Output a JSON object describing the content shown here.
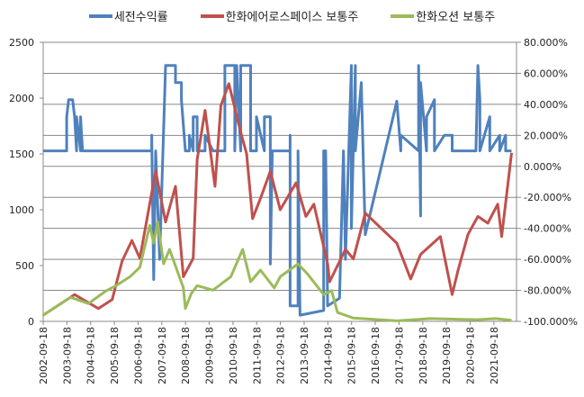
{
  "chart_data": {
    "type": "line",
    "title": "",
    "legend_position": "top",
    "grid": true,
    "x_ticks": [
      "2002-09-18",
      "2003-09-18",
      "2004-09-18",
      "2005-09-18",
      "2006-09-18",
      "2007-09-18",
      "2008-09-18",
      "2009-09-18",
      "2010-09-18",
      "2011-09-18",
      "2012-09-18",
      "2013-09-18",
      "2014-09-18",
      "2015-09-18",
      "2016-09-18",
      "2017-09-18",
      "2018-09-18",
      "2019-09-18",
      "2020-09-18",
      "2021-09-18"
    ],
    "xlim": [
      "2002-09-18",
      "2022-08-31"
    ],
    "y_left": {
      "range": [
        0,
        2500
      ],
      "ticks": [
        "0",
        "500",
        "1000",
        "1500",
        "2000",
        "2500"
      ]
    },
    "y_right": {
      "range": [
        -100,
        80
      ],
      "ticks": [
        "-100.000%",
        "-80.000%",
        "-60.000%",
        "-40.000%",
        "-20.000%",
        "0.000%",
        "20.000%",
        "40.000%",
        "60.000%",
        "80.000%"
      ]
    },
    "series": [
      {
        "name": "세전수익률",
        "axis": "right",
        "color": "#4F81BD",
        "points": [
          [
            "2002-09",
            10
          ],
          [
            "2003-09",
            10
          ],
          [
            "2003-09",
            32
          ],
          [
            "2003-10",
            43
          ],
          [
            "2003-12",
            43
          ],
          [
            "2004-01",
            32
          ],
          [
            "2004-02",
            10
          ],
          [
            "2004-02",
            32
          ],
          [
            "2004-04",
            10
          ],
          [
            "2004-04",
            32
          ],
          [
            "2004-05",
            10
          ],
          [
            "2007-04",
            10
          ],
          [
            "2007-04",
            20
          ],
          [
            "2007-05",
            -73
          ],
          [
            "2007-06",
            10
          ],
          [
            "2007-08",
            -60
          ],
          [
            "2007-11",
            65
          ],
          [
            "2008-04",
            65
          ],
          [
            "2008-04",
            54
          ],
          [
            "2008-07",
            54
          ],
          [
            "2008-07",
            43
          ],
          [
            "2008-09",
            10
          ],
          [
            "2008-11",
            10
          ],
          [
            "2008-11",
            20
          ],
          [
            "2009-01",
            10
          ],
          [
            "2009-01",
            32
          ],
          [
            "2009-03",
            32
          ],
          [
            "2009-03",
            10
          ],
          [
            "2009-07",
            10
          ],
          [
            "2009-07",
            20
          ],
          [
            "2009-11",
            10
          ],
          [
            "2010-05",
            10
          ],
          [
            "2010-05",
            65
          ],
          [
            "2010-10",
            65
          ],
          [
            "2010-10",
            10
          ],
          [
            "2010-11",
            65
          ],
          [
            "2011-01",
            10
          ],
          [
            "2011-01",
            65
          ],
          [
            "2011-06",
            65
          ],
          [
            "2011-06",
            10
          ],
          [
            "2011-09",
            10
          ],
          [
            "2011-09",
            32
          ],
          [
            "2012-01",
            10
          ],
          [
            "2012-01",
            32
          ],
          [
            "2012-04",
            32
          ],
          [
            "2012-04",
            -63
          ],
          [
            "2012-05",
            10
          ],
          [
            "2012-10",
            10
          ],
          [
            "2013-02",
            10
          ],
          [
            "2013-02",
            20
          ],
          [
            "2013-02",
            -90
          ],
          [
            "2013-06",
            -90
          ],
          [
            "2013-06",
            10
          ],
          [
            "2013-07",
            -96
          ],
          [
            "2014-07",
            -93
          ],
          [
            "2014-07",
            10
          ],
          [
            "2014-08",
            10
          ],
          [
            "2014-09",
            -90
          ],
          [
            "2015-03",
            -85
          ],
          [
            "2015-05",
            10
          ],
          [
            "2015-06",
            -60
          ],
          [
            "2015-09",
            65
          ],
          [
            "2015-09",
            -40
          ],
          [
            "2015-11",
            65
          ],
          [
            "2015-11",
            10
          ],
          [
            "2016-02",
            54
          ],
          [
            "2016-04",
            -44
          ],
          [
            "2017-08",
            42
          ],
          [
            "2017-10",
            10
          ],
          [
            "2017-10",
            20
          ],
          [
            "2018-07",
            10
          ],
          [
            "2018-07",
            65
          ],
          [
            "2018-08",
            -32
          ],
          [
            "2018-08",
            54
          ],
          [
            "2018-11",
            10
          ],
          [
            "2018-11",
            32
          ],
          [
            "2019-03",
            43
          ],
          [
            "2019-03",
            10
          ],
          [
            "2019-08",
            20
          ],
          [
            "2019-12",
            20
          ],
          [
            "2019-12",
            10
          ],
          [
            "2020-12",
            10
          ],
          [
            "2021-01",
            65
          ],
          [
            "2021-02",
            43
          ],
          [
            "2021-02",
            10
          ],
          [
            "2021-07",
            32
          ],
          [
            "2021-07",
            10
          ],
          [
            "2021-12",
            20
          ],
          [
            "2021-12",
            10
          ],
          [
            "2022-03",
            20
          ],
          [
            "2022-03",
            10
          ],
          [
            "2022-06",
            10
          ]
        ]
      },
      {
        "name": "한화에어로스페이스 보통주",
        "axis": "left",
        "color": "#C0504D",
        "points": [
          [
            "2002-09",
            55
          ],
          [
            "2004-01",
            240
          ],
          [
            "2005-01",
            115
          ],
          [
            "2005-08",
            195
          ],
          [
            "2006-01",
            540
          ],
          [
            "2006-06",
            725
          ],
          [
            "2006-10",
            565
          ],
          [
            "2007-06",
            1345
          ],
          [
            "2007-11",
            890
          ],
          [
            "2008-04",
            1210
          ],
          [
            "2008-08",
            400
          ],
          [
            "2009-01",
            565
          ],
          [
            "2009-03",
            1450
          ],
          [
            "2009-07",
            1890
          ],
          [
            "2009-12",
            1210
          ],
          [
            "2010-03",
            1935
          ],
          [
            "2010-07",
            2130
          ],
          [
            "2011-01",
            1695
          ],
          [
            "2011-04",
            1500
          ],
          [
            "2011-07",
            920
          ],
          [
            "2011-11",
            1100
          ],
          [
            "2012-04",
            1345
          ],
          [
            "2012-09",
            1000
          ],
          [
            "2013-05",
            1240
          ],
          [
            "2013-10",
            940
          ],
          [
            "2014-02",
            1050
          ],
          [
            "2014-09",
            515
          ],
          [
            "2014-10",
            355
          ],
          [
            "2015-06",
            645
          ],
          [
            "2015-10",
            560
          ],
          [
            "2016-04",
            970
          ],
          [
            "2017-08",
            700
          ],
          [
            "2018-03",
            380
          ],
          [
            "2018-08",
            600
          ],
          [
            "2019-06",
            760
          ],
          [
            "2019-12",
            240
          ],
          [
            "2020-03",
            460
          ],
          [
            "2020-08",
            780
          ],
          [
            "2021-01",
            940
          ],
          [
            "2021-06",
            880
          ],
          [
            "2021-11",
            1050
          ],
          [
            "2022-01",
            760
          ],
          [
            "2022-06",
            1510
          ]
        ]
      },
      {
        "name": "한화오션 보통주",
        "axis": "left",
        "color": "#9BBB59",
        "points": [
          [
            "2002-09",
            55
          ],
          [
            "2003-11",
            215
          ],
          [
            "2004-08",
            160
          ],
          [
            "2005-05",
            275
          ],
          [
            "2005-10",
            320
          ],
          [
            "2006-05",
            400
          ],
          [
            "2006-10",
            485
          ],
          [
            "2007-03",
            860
          ],
          [
            "2007-05",
            700
          ],
          [
            "2007-07",
            890
          ],
          [
            "2007-10",
            515
          ],
          [
            "2008-01",
            645
          ],
          [
            "2008-08",
            300
          ],
          [
            "2008-09",
            115
          ],
          [
            "2008-12",
            250
          ],
          [
            "2009-03",
            320
          ],
          [
            "2009-11",
            280
          ],
          [
            "2010-08",
            400
          ],
          [
            "2011-02",
            645
          ],
          [
            "2011-06",
            355
          ],
          [
            "2011-11",
            460
          ],
          [
            "2012-06",
            300
          ],
          [
            "2012-09",
            400
          ],
          [
            "2013-06",
            515
          ],
          [
            "2013-11",
            420
          ],
          [
            "2014-07",
            240
          ],
          [
            "2014-11",
            275
          ],
          [
            "2015-02",
            80
          ],
          [
            "2015-10",
            30
          ],
          [
            "2017-08",
            5
          ],
          [
            "2019-01",
            25
          ],
          [
            "2021-01",
            15
          ],
          [
            "2021-10",
            25
          ],
          [
            "2022-06",
            10
          ]
        ]
      }
    ]
  }
}
